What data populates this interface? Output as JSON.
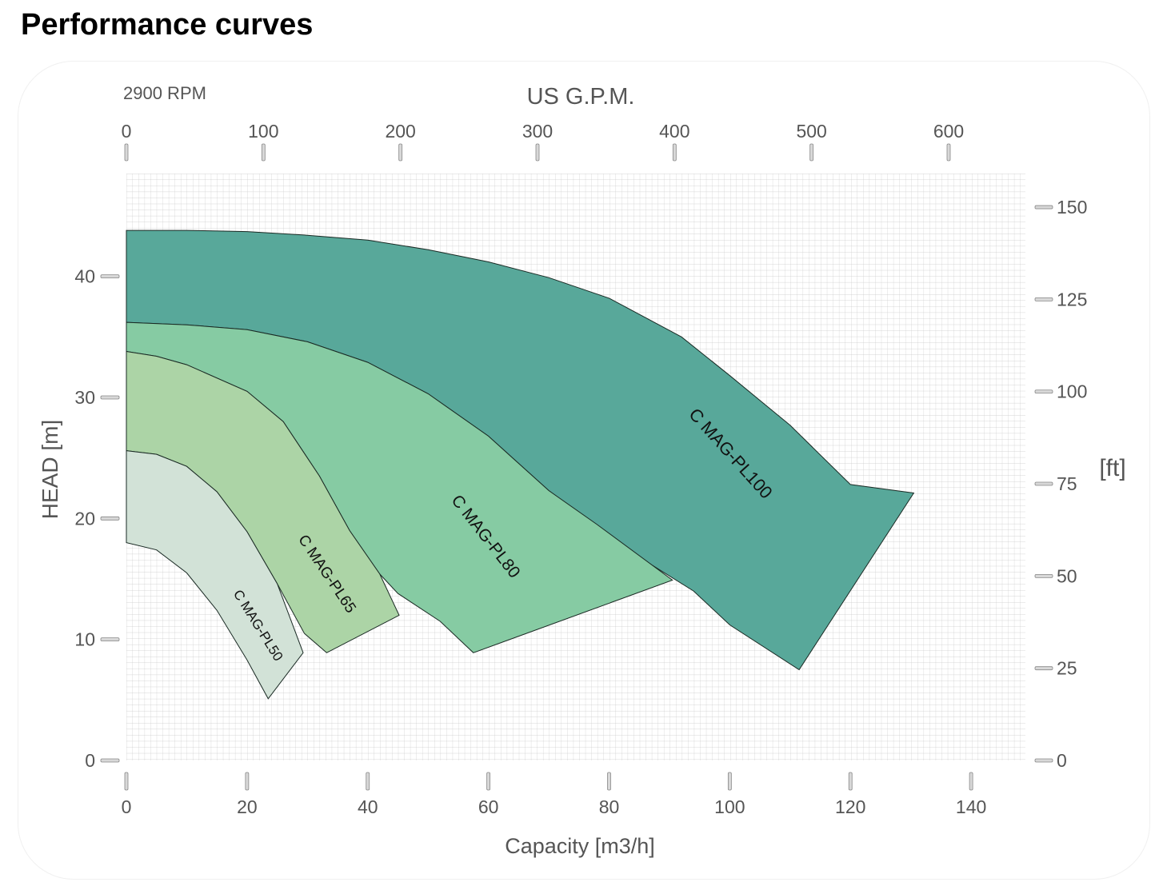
{
  "page": {
    "title": "Performance curves"
  },
  "chart_data": {
    "type": "area",
    "subtitle": "2900 RPM",
    "xlabel": "Capacity  [m3/h]",
    "xlabel_top": "US G.P.M.",
    "ylabel": "HEAD [m]",
    "ylabel_right": "[ft]",
    "xlim": [
      0,
      149
    ],
    "ylim": [
      0,
      48.5
    ],
    "x_ticks": [
      "0",
      "20",
      "40",
      "60",
      "80",
      "100",
      "120",
      "140"
    ],
    "x_tick_values": [
      0,
      20,
      40,
      60,
      80,
      100,
      120,
      140
    ],
    "x_top_ticks": [
      "0",
      "100",
      "200",
      "300",
      "400",
      "500",
      "600"
    ],
    "x_top_tick_values": [
      0,
      100,
      200,
      300,
      400,
      500,
      600
    ],
    "y_ticks": [
      "0",
      "10",
      "20",
      "30",
      "40"
    ],
    "y_tick_values": [
      0,
      10,
      20,
      30,
      40
    ],
    "y_right_ticks": [
      "0",
      "25",
      "50",
      "75",
      "100",
      "125",
      "150"
    ],
    "y_right_tick_values": [
      0,
      25,
      50,
      75,
      100,
      125,
      150
    ],
    "grid": true,
    "series": [
      {
        "name": "C MAG-PL100",
        "color": "#58a89a",
        "upper": [
          [
            0,
            43.8
          ],
          [
            10,
            43.8
          ],
          [
            20,
            43.7
          ],
          [
            30,
            43.4
          ],
          [
            40,
            43.0
          ],
          [
            50,
            42.2
          ],
          [
            60,
            41.2
          ],
          [
            70,
            39.9
          ],
          [
            80,
            38.2
          ],
          [
            92,
            35.0
          ],
          [
            100,
            31.8
          ],
          [
            110,
            27.7
          ],
          [
            120,
            22.8
          ],
          [
            130.5,
            22.1
          ]
        ],
        "lower": [
          [
            0,
            36.2
          ],
          [
            10,
            36.0
          ],
          [
            20,
            35.6
          ],
          [
            30,
            34.6
          ],
          [
            40,
            32.9
          ],
          [
            50,
            30.3
          ],
          [
            60,
            26.8
          ],
          [
            70,
            22.3
          ],
          [
            85,
            16.8
          ],
          [
            94,
            14.0
          ],
          [
            100,
            11.2
          ],
          [
            111.5,
            7.5
          ]
        ],
        "end_edge": [
          [
            130.5,
            22.1
          ],
          [
            111.5,
            7.5
          ]
        ]
      },
      {
        "name": "C MAG-PL80",
        "color": "#86cba3",
        "upper": [
          [
            0,
            36.2
          ],
          [
            10,
            36.0
          ],
          [
            20,
            35.6
          ],
          [
            30,
            34.6
          ],
          [
            40,
            32.9
          ],
          [
            50,
            30.3
          ],
          [
            60,
            26.8
          ],
          [
            70,
            22.3
          ],
          [
            78,
            19.5
          ],
          [
            90.5,
            14.9
          ]
        ],
        "lower": [
          [
            0,
            33.8
          ],
          [
            5,
            33.4
          ],
          [
            10,
            32.7
          ],
          [
            20,
            30.5
          ],
          [
            26,
            28.0
          ],
          [
            32,
            23.5
          ],
          [
            37,
            19.0
          ],
          [
            42,
            15.4
          ],
          [
            45,
            13.8
          ],
          [
            52,
            11.5
          ],
          [
            57.5,
            8.9
          ]
        ],
        "end_edge": [
          [
            90.5,
            14.9
          ],
          [
            57.5,
            8.9
          ]
        ]
      },
      {
        "name": "C MAG-PL65",
        "color": "#acd4a6",
        "upper": [
          [
            0,
            33.8
          ],
          [
            5,
            33.4
          ],
          [
            10,
            32.7
          ],
          [
            20,
            30.5
          ],
          [
            26,
            28.0
          ],
          [
            32,
            23.5
          ],
          [
            37,
            19.0
          ],
          [
            42,
            15.4
          ],
          [
            45.2,
            12.0
          ]
        ],
        "lower": [
          [
            0,
            25.6
          ],
          [
            5,
            25.3
          ],
          [
            10,
            24.3
          ],
          [
            15,
            22.2
          ],
          [
            20,
            18.9
          ],
          [
            25,
            14.6
          ],
          [
            29.5,
            10.5
          ],
          [
            33.2,
            8.9
          ]
        ],
        "end_edge": [
          [
            45.2,
            12.0
          ],
          [
            33.2,
            8.9
          ]
        ]
      },
      {
        "name": "C MAG-PL50",
        "color": "#d2e2d7",
        "upper": [
          [
            0,
            25.6
          ],
          [
            5,
            25.3
          ],
          [
            10,
            24.3
          ],
          [
            15,
            22.2
          ],
          [
            20,
            18.9
          ],
          [
            25,
            14.6
          ],
          [
            29.3,
            8.9
          ]
        ],
        "lower": [
          [
            0,
            18.0
          ],
          [
            5,
            17.4
          ],
          [
            10,
            15.5
          ],
          [
            15,
            12.4
          ],
          [
            20,
            8.3
          ],
          [
            23.5,
            5.1
          ]
        ],
        "end_edge": [
          [
            29.3,
            8.9
          ],
          [
            23.5,
            5.1
          ]
        ]
      }
    ]
  }
}
